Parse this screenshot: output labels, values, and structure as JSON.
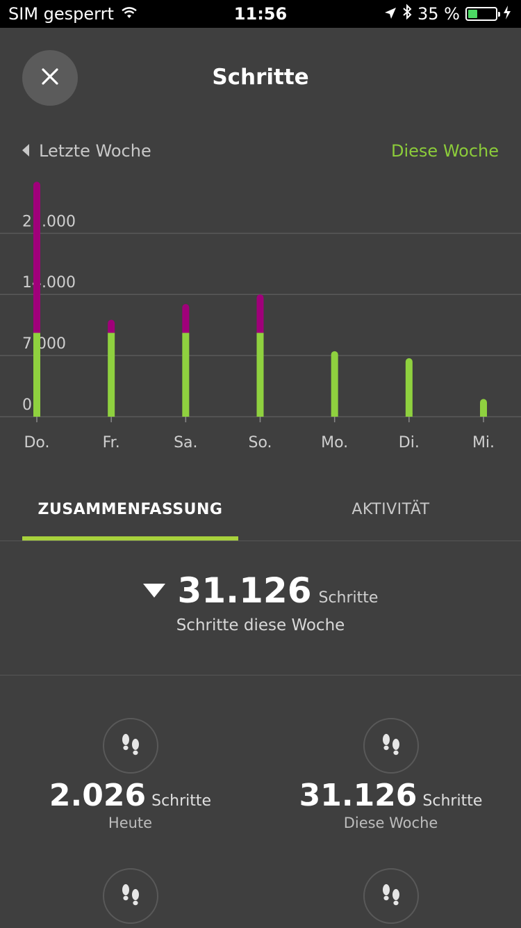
{
  "status_bar": {
    "carrier": "SIM gesperrt",
    "time": "11:56",
    "battery": "35 %",
    "battery_level": 0.35
  },
  "header": {
    "title": "Schritte",
    "close_icon": "close-icon"
  },
  "week_nav": {
    "previous_label": "Letzte Woche",
    "current_label": "Diese Woche"
  },
  "colors": {
    "accent_green": "#8ccc3a",
    "bar_green": "#8fd13f",
    "bar_magenta": "#a0007a",
    "tab_underline": "#a8d23c"
  },
  "chart_data": {
    "type": "bar",
    "stacked": true,
    "categories": [
      "Do.",
      "Fr.",
      "Sa.",
      "So.",
      "Mo.",
      "Di.",
      "Mi."
    ],
    "series": [
      {
        "values": [
          9600,
          9600,
          9600,
          9600,
          7500,
          6700,
          2026
        ],
        "color": "#8fd13f"
      },
      {
        "values": [
          17300,
          1500,
          3300,
          4400,
          0,
          0,
          0
        ],
        "color": "#a0007a"
      }
    ],
    "yticks": [
      0,
      7000,
      14000,
      21000
    ],
    "ytick_labels": [
      "0",
      "7.000",
      "14.000",
      "21.000"
    ],
    "ylim": [
      0,
      27000
    ],
    "grid": true,
    "legend": "none"
  },
  "tabs": [
    {
      "label": "ZUSAMMENFASSUNG",
      "active": true
    },
    {
      "label": "AKTIVITÄT",
      "active": false
    }
  ],
  "weekly_summary": {
    "value": "31.126",
    "unit": "Schritte",
    "label": "Schritte diese Woche"
  },
  "stats": [
    {
      "value": "2.026",
      "unit": "Schritte",
      "label": "Heute",
      "icon": "footsteps-icon"
    },
    {
      "value": "31.126",
      "unit": "Schritte",
      "label": "Diese Woche",
      "icon": "footsteps-icon"
    },
    {
      "icon": "footsteps-icon"
    },
    {
      "icon": "footsteps-icon"
    }
  ]
}
